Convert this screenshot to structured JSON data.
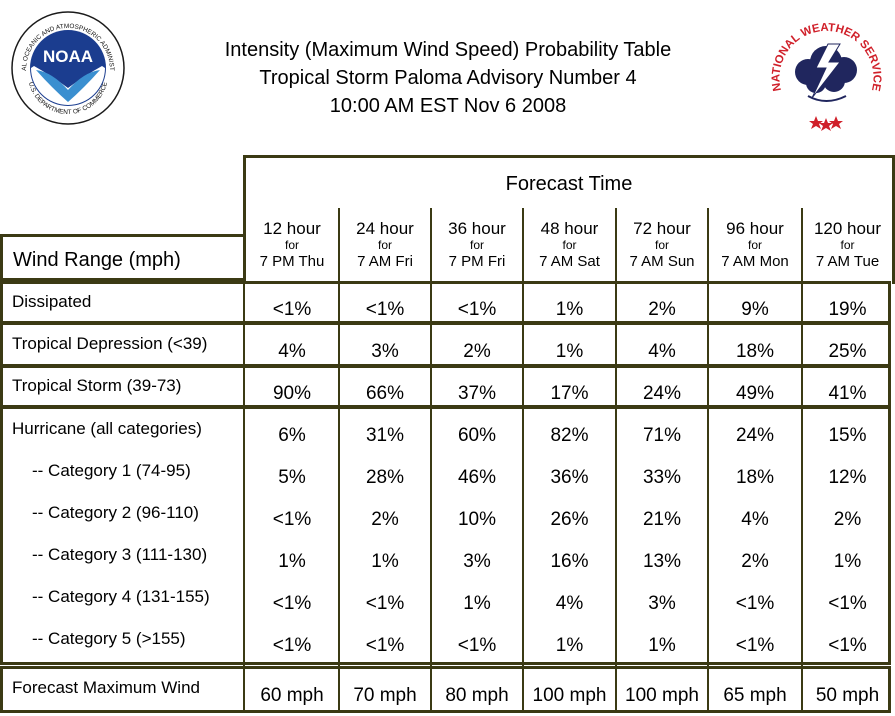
{
  "header": {
    "title_line1": "Intensity (Maximum Wind Speed) Probability Table",
    "title_line2": "Tropical Storm Paloma Advisory Number 4",
    "title_line3": "10:00 AM EST Nov 6 2008",
    "noaa_wordmark": "NOAA",
    "noaa_ring_text": "NATIONAL OCEANIC AND ATMOSPHERIC ADMINISTRATION",
    "noaa_bottom_text": "U.S. DEPARTMENT OF COMMERCE",
    "nws_ring_text": "NATIONAL WEATHER SERVICE"
  },
  "table": {
    "forecast_time_label": "Forecast Time",
    "wind_range_label": "Wind Range (mph)",
    "columns": [
      {
        "hours": "12 hour",
        "for": "for",
        "date": "7 PM Thu"
      },
      {
        "hours": "24 hour",
        "for": "for",
        "date": "7 AM Fri"
      },
      {
        "hours": "36 hour",
        "for": "for",
        "date": "7 PM Fri"
      },
      {
        "hours": "48 hour",
        "for": "for",
        "date": "7 AM Sat"
      },
      {
        "hours": "72 hour",
        "for": "for",
        "date": "7 AM Sun"
      },
      {
        "hours": "96 hour",
        "for": "for",
        "date": "7 AM Mon"
      },
      {
        "hours": "120 hour",
        "for": "for",
        "date": "7 AM Tue"
      }
    ],
    "rows": [
      {
        "label": "Dissipated",
        "values": [
          "<1%",
          "<1%",
          "<1%",
          "1%",
          "2%",
          "9%",
          "19%"
        ]
      },
      {
        "label": "Tropical Depression (<39)",
        "values": [
          "4%",
          "3%",
          "2%",
          "1%",
          "4%",
          "18%",
          "25%"
        ]
      },
      {
        "label": "Tropical Storm (39-73)",
        "values": [
          "90%",
          "66%",
          "37%",
          "17%",
          "24%",
          "49%",
          "41%"
        ]
      },
      {
        "label": "Hurricane (all categories)",
        "values": [
          "6%",
          "31%",
          "60%",
          "82%",
          "71%",
          "24%",
          "15%"
        ]
      },
      {
        "label": "-- Category 1 (74-95)",
        "values": [
          "5%",
          "28%",
          "46%",
          "36%",
          "33%",
          "18%",
          "12%"
        ]
      },
      {
        "label": "-- Category 2 (96-110)",
        "values": [
          "<1%",
          "2%",
          "10%",
          "26%",
          "21%",
          "4%",
          "2%"
        ]
      },
      {
        "label": "-- Category 3 (111-130)",
        "values": [
          "1%",
          "1%",
          "3%",
          "16%",
          "13%",
          "2%",
          "1%"
        ]
      },
      {
        "label": "-- Category 4 (131-155)",
        "values": [
          "<1%",
          "<1%",
          "1%",
          "4%",
          "3%",
          "<1%",
          "<1%"
        ]
      },
      {
        "label": "-- Category 5 (>155)",
        "values": [
          "<1%",
          "<1%",
          "<1%",
          "1%",
          "1%",
          "<1%",
          "<1%"
        ]
      },
      {
        "label": "Forecast Maximum Wind",
        "values": [
          "60 mph",
          "70 mph",
          "80 mph",
          "100 mph",
          "100 mph",
          "65 mph",
          "50 mph"
        ]
      }
    ]
  },
  "colors": {
    "border": "#3b3a14",
    "noaa_blue": "#1b3d8f",
    "nws_red": "#d0202a",
    "nws_navy": "#20265e"
  }
}
